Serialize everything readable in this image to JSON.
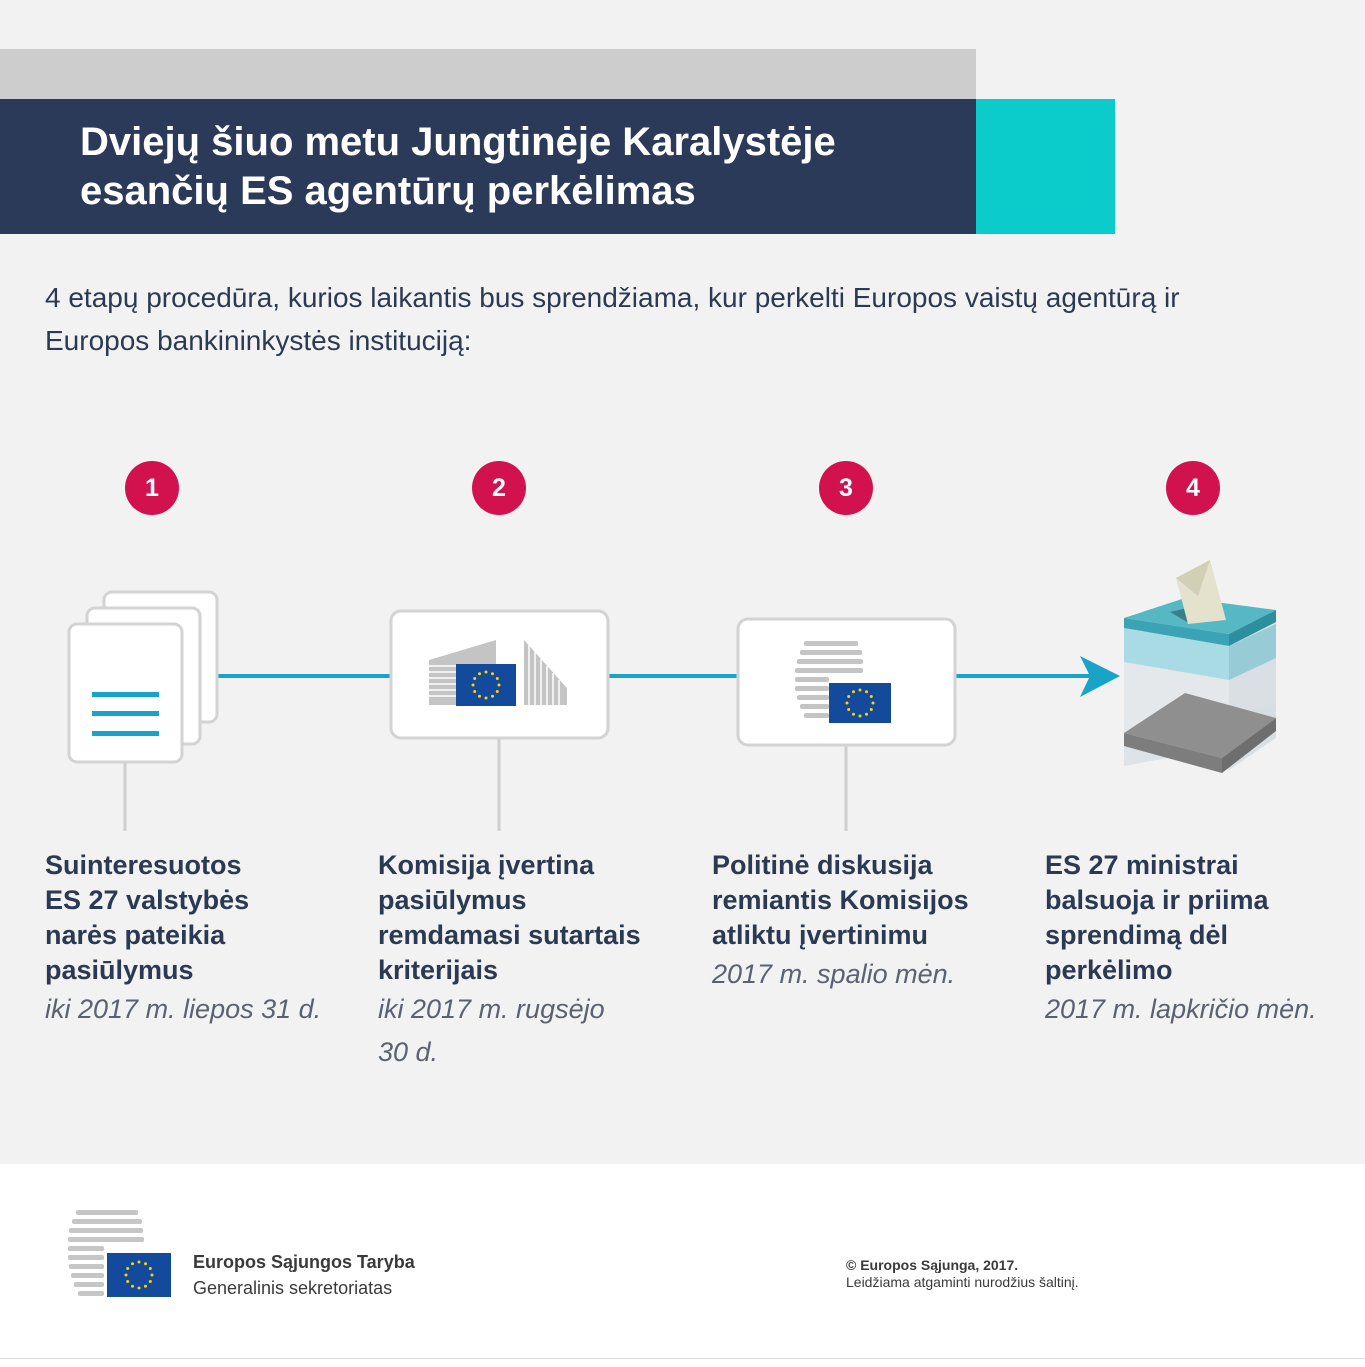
{
  "header": {
    "title": "Dviejų šiuo metu Jungtinėje Karalystėje esančių ES agentūrų perkėlimas",
    "intro": "4 etapų procedūra, kurios laikantis bus sprendžiama, kur perkelti Europos vaistų agentūrą ir Europos bankininkystės instituciją:"
  },
  "steps": [
    {
      "number": "1",
      "title": "Suinteresuotos ES 27 valstybės narės pateikia pasiūlymus",
      "date": "iki 2017 m. liepos 31 d.",
      "icon": "documents-icon"
    },
    {
      "number": "2",
      "title": "Komisija įvertina pasiūlymus remdamasi sutartais kriterijais",
      "date": "iki 2017 m. rugsėjo 30 d.",
      "icon": "european-commission-icon"
    },
    {
      "number": "3",
      "title": "Politinė diskusija remiantis Komisijos atliktu įvertinimu",
      "date": "2017 m. spalio mėn.",
      "icon": "council-icon"
    },
    {
      "number": "4",
      "title": "ES 27 ministrai balsuoja ir priima sprendimą dėl perkėlimo",
      "date": "2017 m. lapkričio mėn.",
      "icon": "ballot-box-icon"
    }
  ],
  "footer": {
    "org_name": "Europos Sąjungos Taryba",
    "org_sub": "Generalinis sekretoriatas",
    "copyright": "© Europos Sąjunga, 2017.",
    "copyright_sub": "Leidžiama atgaminti nurodžius šaltinį."
  },
  "colors": {
    "navy": "#2b3a59",
    "teal": "#0ccbcb",
    "accent_red": "#d2124f",
    "connector_blue": "#1aa3c8",
    "eu_blue": "#134a9c",
    "eu_star": "#ffd200"
  }
}
